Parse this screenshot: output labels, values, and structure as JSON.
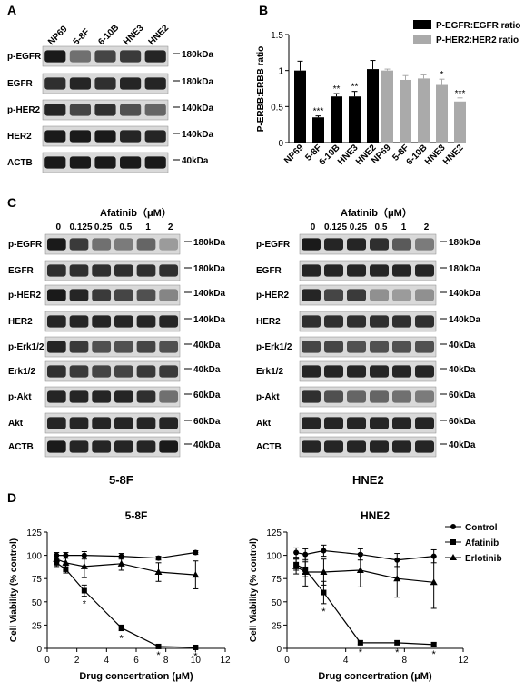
{
  "figure": {
    "panel_labels": [
      "A",
      "B",
      "C",
      "D"
    ]
  },
  "panel_a": {
    "lanes": [
      "NP69",
      "5-8F",
      "6-10B",
      "HNE3",
      "HNE2"
    ],
    "blots": [
      {
        "label": "p-EGFR",
        "size": "180kDa",
        "intensity": [
          0.95,
          0.55,
          0.75,
          0.8,
          0.9
        ]
      },
      {
        "label": "EGFR",
        "size": "180kDa",
        "intensity": [
          0.85,
          0.9,
          0.85,
          0.9,
          0.9
        ]
      },
      {
        "label": "p-HER2",
        "size": "140kDa",
        "intensity": [
          0.9,
          0.75,
          0.85,
          0.7,
          0.6
        ]
      },
      {
        "label": "HER2",
        "size": "140kDa",
        "intensity": [
          0.95,
          0.95,
          0.95,
          0.9,
          0.9
        ]
      },
      {
        "label": "ACTB",
        "size": "40kDa",
        "intensity": [
          0.95,
          0.95,
          0.95,
          0.95,
          0.95
        ]
      }
    ]
  },
  "panel_c": {
    "treatment_label": "Afatinib（μM）",
    "doses": [
      "0",
      "0.125",
      "0.25",
      "0.5",
      "1",
      "2"
    ],
    "blots_left": [
      {
        "label": "p-EGFR",
        "size": "180kDa",
        "intensity": [
          0.95,
          0.8,
          0.55,
          0.5,
          0.6,
          0.35
        ]
      },
      {
        "label": "EGFR",
        "size": "180kDa",
        "intensity": [
          0.85,
          0.85,
          0.85,
          0.85,
          0.85,
          0.85
        ]
      },
      {
        "label": "p-HER2",
        "size": "140kDa",
        "intensity": [
          0.95,
          0.9,
          0.8,
          0.75,
          0.7,
          0.45
        ]
      },
      {
        "label": "HER2",
        "size": "140kDa",
        "intensity": [
          0.9,
          0.9,
          0.9,
          0.9,
          0.9,
          0.9
        ]
      },
      {
        "label": "p-Erk1/2",
        "size": "40kDa",
        "intensity": [
          0.9,
          0.8,
          0.7,
          0.7,
          0.75,
          0.7
        ]
      },
      {
        "label": "Erk1/2",
        "size": "40kDa",
        "intensity": [
          0.85,
          0.8,
          0.75,
          0.75,
          0.8,
          0.8
        ]
      },
      {
        "label": "p-Akt",
        "size": "60kDa",
        "intensity": [
          0.9,
          0.9,
          0.9,
          0.9,
          0.85,
          0.55
        ]
      },
      {
        "label": "Akt",
        "size": "60kDa",
        "intensity": [
          0.9,
          0.9,
          0.9,
          0.9,
          0.9,
          0.9
        ]
      },
      {
        "label": "ACTB",
        "size": "40kDa",
        "intensity": [
          0.95,
          0.9,
          0.9,
          0.9,
          0.9,
          0.95
        ]
      }
    ],
    "blots_right": [
      {
        "label": "p-EGFR",
        "size": "180kDa",
        "intensity": [
          0.95,
          0.9,
          0.9,
          0.85,
          0.65,
          0.5
        ]
      },
      {
        "label": "EGFR",
        "size": "180kDa",
        "intensity": [
          0.9,
          0.9,
          0.9,
          0.9,
          0.9,
          0.9
        ]
      },
      {
        "label": "p-HER2",
        "size": "140kDa",
        "intensity": [
          0.9,
          0.75,
          0.8,
          0.4,
          0.35,
          0.4
        ]
      },
      {
        "label": "HER2",
        "size": "140kDa",
        "intensity": [
          0.85,
          0.85,
          0.85,
          0.85,
          0.85,
          0.85
        ]
      },
      {
        "label": "p-Erk1/2",
        "size": "40kDa",
        "intensity": [
          0.75,
          0.75,
          0.7,
          0.7,
          0.7,
          0.7
        ]
      },
      {
        "label": "Erk1/2",
        "size": "40kDa",
        "intensity": [
          0.9,
          0.9,
          0.9,
          0.9,
          0.9,
          0.9
        ]
      },
      {
        "label": "p-Akt",
        "size": "60kDa",
        "intensity": [
          0.85,
          0.7,
          0.6,
          0.6,
          0.55,
          0.5
        ]
      },
      {
        "label": "Akt",
        "size": "60kDa",
        "intensity": [
          0.9,
          0.9,
          0.9,
          0.9,
          0.9,
          0.9
        ]
      },
      {
        "label": "ACTB",
        "size": "40kDa",
        "intensity": [
          0.9,
          0.9,
          0.9,
          0.9,
          0.9,
          0.9
        ]
      }
    ],
    "caption_left": "5-8F",
    "caption_right": "HNE2"
  },
  "chart_data": [
    {
      "type": "bar",
      "panel": "B",
      "ylabel": "P-ERBB:ERBB ratio",
      "ylim": [
        0,
        1.5
      ],
      "yticks": [
        "0",
        "0.5",
        "1",
        "1.5"
      ],
      "legend_position": "top-right",
      "series": [
        {
          "name": "P-EGFR:EGFR ratio",
          "color": "#000000",
          "categories": [
            "NP69",
            "5-8F",
            "6-10B",
            "HNE3",
            "HNE2"
          ],
          "values": [
            1.0,
            0.35,
            0.64,
            0.64,
            1.02
          ],
          "errors": [
            0.13,
            0.02,
            0.04,
            0.07,
            0.12
          ],
          "significance": [
            "",
            "***",
            "**",
            "**",
            ""
          ]
        },
        {
          "name": "P-HER2:HER2 ratio",
          "color": "#aaaaaa",
          "categories": [
            "NP69",
            "5-8F",
            "6-10B",
            "HNE3",
            "HNE2"
          ],
          "values": [
            1.0,
            0.87,
            0.89,
            0.8,
            0.57
          ],
          "errors": [
            0.02,
            0.06,
            0.05,
            0.08,
            0.05
          ],
          "significance": [
            "",
            "",
            "",
            "*",
            "***"
          ]
        }
      ]
    },
    {
      "type": "line",
      "panel": "D",
      "title": "5-8F",
      "xlabel": "Drug concertration (μM)",
      "ylabel": "Cell Viability (% control)",
      "xlim": [
        0,
        12
      ],
      "ylim": [
        0,
        125
      ],
      "xticks": [
        "0",
        "2",
        "4",
        "6",
        "8",
        "10",
        "12"
      ],
      "yticks": [
        "0",
        "25",
        "50",
        "75",
        "100",
        "125"
      ],
      "series": [
        {
          "name": "Control",
          "marker": "circle",
          "x": [
            0.625,
            1.25,
            2.5,
            5,
            7.5,
            10
          ],
          "y": [
            100,
            100,
            100,
            99,
            97,
            103
          ],
          "errors": [
            3,
            3,
            4,
            3,
            2,
            2
          ]
        },
        {
          "name": "Afatinib",
          "marker": "square",
          "x": [
            0.625,
            1.25,
            2.5,
            5,
            7.5,
            10
          ],
          "y": [
            92,
            85,
            62,
            22,
            2,
            1
          ],
          "errors": [
            4,
            4,
            6,
            3,
            1,
            1
          ],
          "significance": [
            "",
            "",
            "*",
            "*",
            "*",
            "*"
          ]
        },
        {
          "name": "Erlotinib",
          "marker": "triangle",
          "x": [
            0.625,
            1.25,
            2.5,
            5,
            7.5,
            10
          ],
          "y": [
            96,
            92,
            88,
            91,
            82,
            79
          ],
          "errors": [
            4,
            5,
            12,
            7,
            10,
            15
          ]
        }
      ]
    },
    {
      "type": "line",
      "panel": "D",
      "title": "HNE2",
      "xlabel": "Drug concertration (μM)",
      "ylabel": "Cell Viability (% control)",
      "xlim": [
        0,
        12
      ],
      "ylim": [
        0,
        125
      ],
      "xticks": [
        "0",
        "4",
        "8",
        "12"
      ],
      "yticks": [
        "0",
        "25",
        "50",
        "75",
        "100",
        "125"
      ],
      "legend_position": "top-right",
      "series": [
        {
          "name": "Control",
          "marker": "circle",
          "x": [
            0.625,
            1.25,
            2.5,
            5,
            7.5,
            10
          ],
          "y": [
            103,
            101,
            105,
            101,
            95,
            99
          ],
          "errors": [
            5,
            6,
            6,
            6,
            7,
            7
          ]
        },
        {
          "name": "Afatinib",
          "marker": "square",
          "x": [
            0.625,
            1.25,
            2.5,
            5,
            7.5,
            10
          ],
          "y": [
            90,
            85,
            60,
            6,
            6,
            4
          ],
          "errors": [
            6,
            8,
            12,
            2,
            2,
            2
          ],
          "significance": [
            "",
            "",
            "*",
            "*",
            "*",
            "*"
          ]
        },
        {
          "name": "Erlotinib",
          "marker": "triangle",
          "x": [
            0.625,
            1.25,
            2.5,
            5,
            7.5,
            10
          ],
          "y": [
            88,
            82,
            82,
            84,
            75,
            71
          ],
          "errors": [
            8,
            15,
            14,
            18,
            20,
            28
          ]
        }
      ]
    }
  ]
}
